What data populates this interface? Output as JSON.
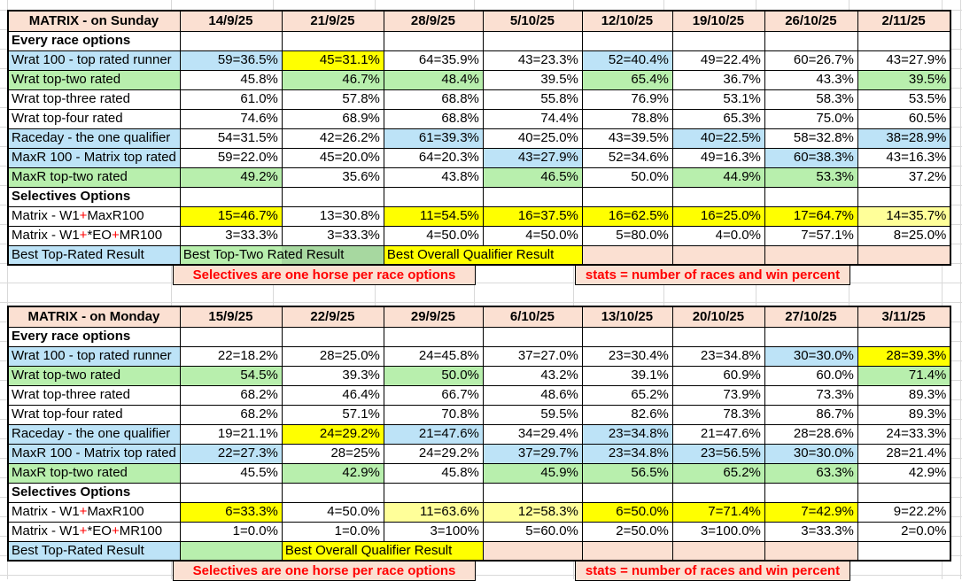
{
  "colors": {
    "header_fill": "#FBE0D2",
    "blue_fill": "#BDE3F7",
    "green_fill": "#B8EFAD",
    "green_dark_fill": "#A7D8A0",
    "yellow_fill": "#FFFF00",
    "pale_yellow_fill": "#FFFF99",
    "accent_red": "#FF0000",
    "gridline": "#D9D9D9",
    "border": "#000000"
  },
  "tables": [
    {
      "title": "MATRIX - on Sunday",
      "dates": [
        "14/9/25",
        "21/9/25",
        "28/9/25",
        "5/10/25",
        "12/10/25",
        "19/10/25",
        "26/10/25",
        "2/11/25"
      ],
      "rows": [
        {
          "type": "section",
          "label": "Every race options"
        },
        {
          "type": "data",
          "label": "Wrat 100 - top rated runner",
          "lbg": "blue",
          "cells": [
            {
              "v": "59=36.5%",
              "bg": "blue"
            },
            {
              "v": "45=31.1%",
              "bg": "yellow"
            },
            {
              "v": "64=35.9%"
            },
            {
              "v": "43=23.3%"
            },
            {
              "v": "52=40.4%",
              "bg": "blue"
            },
            {
              "v": "49=22.4%"
            },
            {
              "v": "60=26.7%"
            },
            {
              "v": "43=27.9%"
            }
          ]
        },
        {
          "type": "data",
          "label": "Wrat top-two rated",
          "lbg": "green",
          "cells": [
            {
              "v": "45.8%"
            },
            {
              "v": "46.7%",
              "bg": "green"
            },
            {
              "v": "48.4%",
              "bg": "green"
            },
            {
              "v": "39.5%"
            },
            {
              "v": "65.4%",
              "bg": "green"
            },
            {
              "v": "36.7%"
            },
            {
              "v": "43.3%"
            },
            {
              "v": "39.5%",
              "bg": "green"
            }
          ]
        },
        {
          "type": "data",
          "label": "Wrat top-three rated",
          "cells": [
            {
              "v": "61.0%"
            },
            {
              "v": "57.8%"
            },
            {
              "v": "68.8%"
            },
            {
              "v": "55.8%"
            },
            {
              "v": "76.9%"
            },
            {
              "v": "53.1%"
            },
            {
              "v": "58.3%"
            },
            {
              "v": "53.5%"
            }
          ]
        },
        {
          "type": "data",
          "label": "Wrat top-four rated",
          "cells": [
            {
              "v": "74.6%"
            },
            {
              "v": "68.9%"
            },
            {
              "v": "68.8%"
            },
            {
              "v": "74.4%"
            },
            {
              "v": "78.8%"
            },
            {
              "v": "65.3%"
            },
            {
              "v": "75.0%"
            },
            {
              "v": "60.5%"
            }
          ]
        },
        {
          "type": "data",
          "label": "Raceday - the one qualifier",
          "lbg": "blue",
          "cells": [
            {
              "v": "54=31.5%"
            },
            {
              "v": "42=26.2%"
            },
            {
              "v": "61=39.3%",
              "bg": "blue"
            },
            {
              "v": "40=25.0%"
            },
            {
              "v": "43=39.5%"
            },
            {
              "v": "40=22.5%",
              "bg": "blue"
            },
            {
              "v": "58=32.8%"
            },
            {
              "v": "38=28.9%",
              "bg": "blue"
            }
          ]
        },
        {
          "type": "data",
          "label": "MaxR 100 - Matrix top rated",
          "lbg": "blue",
          "cells": [
            {
              "v": "59=22.0%"
            },
            {
              "v": "45=20.0%"
            },
            {
              "v": "64=20.3%"
            },
            {
              "v": "43=27.9%",
              "bg": "blue"
            },
            {
              "v": "52=34.6%"
            },
            {
              "v": "49=16.3%"
            },
            {
              "v": "60=38.3%",
              "bg": "blue"
            },
            {
              "v": "43=16.3%"
            }
          ]
        },
        {
          "type": "data",
          "label": "MaxR top-two rated",
          "lbg": "green",
          "cells": [
            {
              "v": "49.2%",
              "bg": "green"
            },
            {
              "v": "35.6%"
            },
            {
              "v": "43.8%"
            },
            {
              "v": "46.5%",
              "bg": "green"
            },
            {
              "v": "50.0%"
            },
            {
              "v": "44.9%",
              "bg": "green"
            },
            {
              "v": "53.3%",
              "bg": "green"
            },
            {
              "v": "37.2%"
            }
          ]
        },
        {
          "type": "section",
          "label": "Selectives Options"
        },
        {
          "type": "data",
          "label_parts": [
            {
              "t": "Matrix - W1"
            },
            {
              "t": "+",
              "red": true
            },
            {
              "t": "MaxR100"
            }
          ],
          "cells": [
            {
              "v": "15=46.7%",
              "bg": "yellow"
            },
            {
              "v": "13=30.8%"
            },
            {
              "v": "11=54.5%",
              "bg": "yellow"
            },
            {
              "v": "16=37.5%",
              "bg": "yellow"
            },
            {
              "v": "16=62.5%",
              "bg": "yellow"
            },
            {
              "v": "16=25.0%",
              "bg": "yellow"
            },
            {
              "v": "17=64.7%",
              "bg": "yellow"
            },
            {
              "v": "14=35.7%",
              "bg": "pale"
            }
          ]
        },
        {
          "type": "data",
          "label_parts": [
            {
              "t": "Matrix - W1"
            },
            {
              "t": "+",
              "red": true
            },
            {
              "t": "*EO"
            },
            {
              "t": "+",
              "red": true
            },
            {
              "t": "MR100"
            }
          ],
          "cells": [
            {
              "v": "3=33.3%"
            },
            {
              "v": "3=33.3%"
            },
            {
              "v": "4=50.0%"
            },
            {
              "v": "4=50.0%"
            },
            {
              "v": "5=80.0%"
            },
            {
              "v": "4=0.0%"
            },
            {
              "v": "7=57.1%"
            },
            {
              "v": "8=25.0%"
            }
          ]
        },
        {
          "type": "best",
          "label": "Best Top-Rated Result",
          "lbg": "blue",
          "spans": [
            {
              "v": "Best Top-Two Rated Result",
              "cols": 2,
              "bg": "split"
            },
            {
              "v": "Best Overall Qualifier Result",
              "cols": 2,
              "bg": "yellow"
            },
            {
              "v": "",
              "cols": 1,
              "bg": "rose"
            },
            {
              "v": "",
              "cols": 1,
              "bg": "rose"
            },
            {
              "v": "",
              "cols": 1,
              "bg": "rose"
            },
            {
              "v": "",
              "cols": 1,
              "bg": "rose"
            }
          ]
        }
      ],
      "notes": [
        {
          "v": "Selectives are one horse per race options",
          "start": 1,
          "cols": 3
        },
        {
          "v": "stats = number of races and win percent",
          "start": 5,
          "cols": 3
        }
      ]
    },
    {
      "title": "MATRIX - on Monday",
      "dates": [
        "15/9/25",
        "22/9/25",
        "29/9/25",
        "6/10/25",
        "13/10/25",
        "20/10/25",
        "27/10/25",
        "3/11/25"
      ],
      "rows": [
        {
          "type": "section",
          "label": "Every race options"
        },
        {
          "type": "data",
          "label": "Wrat 100 - top rated runner",
          "lbg": "blue",
          "cells": [
            {
              "v": "22=18.2%"
            },
            {
              "v": "28=25.0%"
            },
            {
              "v": "24=45.8%"
            },
            {
              "v": "37=27.0%"
            },
            {
              "v": "23=30.4%"
            },
            {
              "v": "23=34.8%"
            },
            {
              "v": "30=30.0%",
              "bg": "blue"
            },
            {
              "v": "28=39.3%",
              "bg": "yellow"
            }
          ]
        },
        {
          "type": "data",
          "label": "Wrat top-two rated",
          "lbg": "green",
          "cells": [
            {
              "v": "54.5%",
              "bg": "green"
            },
            {
              "v": "39.3%"
            },
            {
              "v": "50.0%",
              "bg": "green"
            },
            {
              "v": "43.2%"
            },
            {
              "v": "39.1%"
            },
            {
              "v": "60.9%"
            },
            {
              "v": "60.0%"
            },
            {
              "v": "71.4%",
              "bg": "green"
            }
          ]
        },
        {
          "type": "data",
          "label": "Wrat top-three rated",
          "cells": [
            {
              "v": "68.2%"
            },
            {
              "v": "46.4%"
            },
            {
              "v": "66.7%"
            },
            {
              "v": "48.6%"
            },
            {
              "v": "65.2%"
            },
            {
              "v": "73.9%"
            },
            {
              "v": "73.3%"
            },
            {
              "v": "89.3%"
            }
          ]
        },
        {
          "type": "data",
          "label": "Wrat top-four rated",
          "cells": [
            {
              "v": "68.2%"
            },
            {
              "v": "57.1%"
            },
            {
              "v": "70.8%"
            },
            {
              "v": "59.5%"
            },
            {
              "v": "82.6%"
            },
            {
              "v": "78.3%"
            },
            {
              "v": "86.7%"
            },
            {
              "v": "89.3%"
            }
          ]
        },
        {
          "type": "data",
          "label": "Raceday - the one qualifier",
          "lbg": "blue",
          "cells": [
            {
              "v": "19=21.1%"
            },
            {
              "v": "24=29.2%",
              "bg": "yellow"
            },
            {
              "v": "21=47.6%",
              "bg": "blue"
            },
            {
              "v": "34=29.4%"
            },
            {
              "v": "23=34.8%",
              "bg": "blue"
            },
            {
              "v": "21=47.6%"
            },
            {
              "v": "28=28.6%"
            },
            {
              "v": "24=33.3%"
            }
          ]
        },
        {
          "type": "data",
          "label": "MaxR 100 - Matrix top rated",
          "lbg": "blue",
          "cells": [
            {
              "v": "22=27.3%",
              "bg": "blue"
            },
            {
              "v": "28=25%"
            },
            {
              "v": "24=29.2%"
            },
            {
              "v": "37=29.7%",
              "bg": "blue"
            },
            {
              "v": "23=34.8%",
              "bg": "blue"
            },
            {
              "v": "23=56.5%",
              "bg": "blue"
            },
            {
              "v": "30=30.0%",
              "bg": "blue"
            },
            {
              "v": "28=21.4%"
            }
          ]
        },
        {
          "type": "data",
          "label": "MaxR top-two rated",
          "lbg": "green",
          "cells": [
            {
              "v": "45.5%"
            },
            {
              "v": "42.9%",
              "bg": "green"
            },
            {
              "v": "45.8%"
            },
            {
              "v": "45.9%",
              "bg": "green"
            },
            {
              "v": "56.5%",
              "bg": "green"
            },
            {
              "v": "65.2%",
              "bg": "green"
            },
            {
              "v": "63.3%",
              "bg": "green"
            },
            {
              "v": "42.9%"
            }
          ]
        },
        {
          "type": "section",
          "label": "Selectives Options"
        },
        {
          "type": "data",
          "label_parts": [
            {
              "t": "Matrix - W1"
            },
            {
              "t": "+",
              "red": true
            },
            {
              "t": "MaxR100"
            }
          ],
          "cells": [
            {
              "v": "6=33.3%",
              "bg": "yellow"
            },
            {
              "v": "4=50.0%"
            },
            {
              "v": "11=63.6%",
              "bg": "pale"
            },
            {
              "v": "12=58.3%",
              "bg": "pale"
            },
            {
              "v": "6=50.0%",
              "bg": "yellow"
            },
            {
              "v": "7=71.4%",
              "bg": "yellow"
            },
            {
              "v": "7=42.9%",
              "bg": "yellow"
            },
            {
              "v": "9=22.2%"
            }
          ]
        },
        {
          "type": "data",
          "label_parts": [
            {
              "t": "Matrix - W1"
            },
            {
              "t": "+",
              "red": true
            },
            {
              "t": "*EO"
            },
            {
              "t": "+",
              "red": true
            },
            {
              "t": "MR100"
            }
          ],
          "cells": [
            {
              "v": "1=0.0%"
            },
            {
              "v": "1=0.0%"
            },
            {
              "v": "3=100%"
            },
            {
              "v": "5=60.0%"
            },
            {
              "v": "2=50.0%"
            },
            {
              "v": "3=100.0%"
            },
            {
              "v": "3=33.3%"
            },
            {
              "v": "2=0.0%"
            }
          ]
        },
        {
          "type": "best",
          "label": "Best Top-Rated Result",
          "lbg": "blue",
          "spans": [
            {
              "v": "",
              "cols": 1,
              "bg": "green"
            },
            {
              "v": "Best Overall Qualifier Result",
              "cols": 2,
              "bg": "yellow"
            },
            {
              "v": "",
              "cols": 1,
              "bg": "rose"
            },
            {
              "v": "",
              "cols": 1,
              "bg": "rose"
            },
            {
              "v": "",
              "cols": 1,
              "bg": "rose"
            },
            {
              "v": "",
              "cols": 1,
              "bg": "rose"
            },
            {
              "v": "",
              "cols": 1
            }
          ]
        }
      ],
      "notes": [
        {
          "v": "Selectives are one horse per race options",
          "start": 1,
          "cols": 3
        },
        {
          "v": "stats = number of races and win percent",
          "start": 5,
          "cols": 3
        }
      ]
    }
  ]
}
